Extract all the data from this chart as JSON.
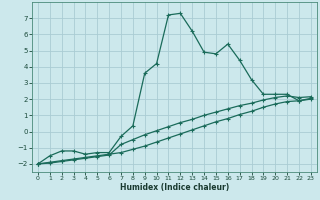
{
  "title": "",
  "xlabel": "Humidex (Indice chaleur)",
  "ylabel": "",
  "background_color": "#cce8ec",
  "grid_color": "#aaccd4",
  "line_color": "#1a6b5a",
  "xlim": [
    -0.5,
    23.5
  ],
  "ylim": [
    -2.5,
    8.0
  ],
  "xticks": [
    0,
    1,
    2,
    3,
    4,
    5,
    6,
    7,
    8,
    9,
    10,
    11,
    12,
    13,
    14,
    15,
    16,
    17,
    18,
    19,
    20,
    21,
    22,
    23
  ],
  "yticks": [
    -2,
    -1,
    0,
    1,
    2,
    3,
    4,
    5,
    6,
    7
  ],
  "line1_x": [
    0,
    1,
    2,
    3,
    4,
    5,
    6,
    7,
    8,
    9,
    10,
    11,
    12,
    13,
    14,
    15,
    16,
    17,
    18,
    19,
    20,
    21,
    22,
    23
  ],
  "line1_y": [
    -2.0,
    -1.5,
    -1.2,
    -1.2,
    -1.4,
    -1.3,
    -1.3,
    -0.3,
    0.35,
    3.6,
    4.2,
    7.2,
    7.3,
    6.2,
    4.9,
    4.8,
    5.4,
    4.4,
    3.2,
    2.3,
    2.3,
    2.3,
    1.9,
    2.0
  ],
  "line2_x": [
    0,
    1,
    2,
    3,
    4,
    5,
    6,
    7,
    8,
    9,
    10,
    11,
    12,
    13,
    14,
    15,
    16,
    17,
    18,
    19,
    20,
    21,
    22,
    23
  ],
  "line2_y": [
    -2.0,
    -1.9,
    -1.8,
    -1.7,
    -1.6,
    -1.5,
    -1.4,
    -1.3,
    -1.1,
    -0.9,
    -0.65,
    -0.4,
    -0.15,
    0.1,
    0.35,
    0.6,
    0.8,
    1.05,
    1.25,
    1.5,
    1.7,
    1.85,
    1.9,
    2.05
  ],
  "line3_x": [
    0,
    1,
    2,
    3,
    4,
    5,
    6,
    7,
    8,
    9,
    10,
    11,
    12,
    13,
    14,
    15,
    16,
    17,
    18,
    19,
    20,
    21,
    22,
    23
  ],
  "line3_y": [
    -2.0,
    -1.95,
    -1.85,
    -1.75,
    -1.65,
    -1.55,
    -1.45,
    -0.8,
    -0.5,
    -0.2,
    0.05,
    0.3,
    0.55,
    0.75,
    1.0,
    1.2,
    1.4,
    1.6,
    1.75,
    1.95,
    2.1,
    2.2,
    2.1,
    2.15
  ]
}
